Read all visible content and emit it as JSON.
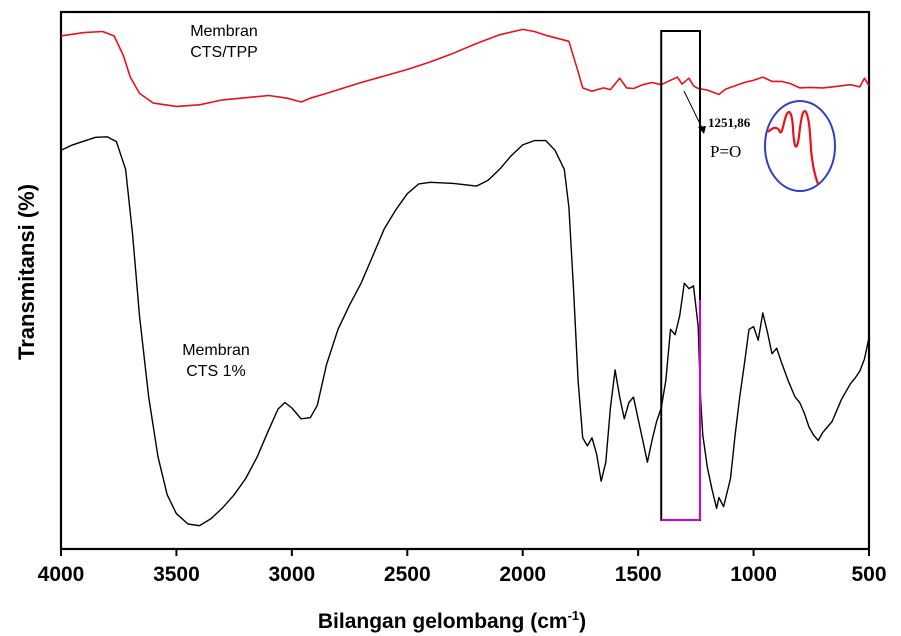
{
  "chart_data": {
    "type": "line",
    "xlabel": "Bilangan gelombang (cm",
    "xlabel_sup": "-1",
    "xlabel_close": ")",
    "ylabel": "Transmitansi (%)",
    "xlim": [
      4000,
      500
    ],
    "x_reversed": true,
    "x_ticks": [
      "4000",
      "3500",
      "3000",
      "2500",
      "2000",
      "1500",
      "1000",
      "500"
    ],
    "y_ticks_shown": false,
    "series": [
      {
        "name": "Membran CTS/TPP",
        "label_lines": [
          "Membran",
          "CTS/TPP"
        ],
        "color": "#e8121a",
        "points": [
          [
            4000,
            91.6
          ],
          [
            3900,
            92.2
          ],
          [
            3820,
            92.4
          ],
          [
            3770,
            91.6
          ],
          [
            3730,
            88.0
          ],
          [
            3700,
            84.0
          ],
          [
            3660,
            81.0
          ],
          [
            3600,
            79.2
          ],
          [
            3500,
            78.6
          ],
          [
            3400,
            78.9
          ],
          [
            3300,
            79.8
          ],
          [
            3200,
            80.2
          ],
          [
            3100,
            80.6
          ],
          [
            3020,
            80.1
          ],
          [
            2960,
            79.4
          ],
          [
            2920,
            80.1
          ],
          [
            2850,
            81.0
          ],
          [
            2700,
            83.0
          ],
          [
            2500,
            85.4
          ],
          [
            2400,
            86.8
          ],
          [
            2300,
            88.4
          ],
          [
            2200,
            90.2
          ],
          [
            2100,
            91.8
          ],
          [
            2000,
            92.8
          ],
          [
            1950,
            92.4
          ],
          [
            1900,
            91.7
          ],
          [
            1800,
            90.6
          ],
          [
            1760,
            85.0
          ],
          [
            1740,
            82.0
          ],
          [
            1700,
            81.4
          ],
          [
            1650,
            82.0
          ],
          [
            1620,
            81.7
          ],
          [
            1580,
            83.8
          ],
          [
            1550,
            82.0
          ],
          [
            1520,
            81.9
          ],
          [
            1480,
            82.6
          ],
          [
            1440,
            83.0
          ],
          [
            1400,
            82.6
          ],
          [
            1360,
            83.4
          ],
          [
            1330,
            84.0
          ],
          [
            1310,
            82.7
          ],
          [
            1280,
            83.8
          ],
          [
            1260,
            82.4
          ],
          [
            1240,
            81.9
          ],
          [
            1200,
            81.6
          ],
          [
            1150,
            80.8
          ],
          [
            1120,
            81.8
          ],
          [
            1080,
            82.4
          ],
          [
            1040,
            83.0
          ],
          [
            1000,
            83.4
          ],
          [
            960,
            84.0
          ],
          [
            920,
            83.2
          ],
          [
            880,
            83.2
          ],
          [
            840,
            82.8
          ],
          [
            800,
            82.0
          ],
          [
            760,
            82.1
          ],
          [
            700,
            82.0
          ],
          [
            660,
            82.2
          ],
          [
            620,
            82.4
          ],
          [
            580,
            82.6
          ],
          [
            540,
            82.2
          ],
          [
            520,
            83.8
          ],
          [
            500,
            82.4
          ]
        ]
      },
      {
        "name": "Membran CTS 1%",
        "label_lines": [
          "Membran",
          "CTS 1%"
        ],
        "color": "#000000",
        "points": [
          [
            4000,
            70.5
          ],
          [
            3950,
            71.5
          ],
          [
            3900,
            72.2
          ],
          [
            3850,
            72.9
          ],
          [
            3800,
            73.0
          ],
          [
            3760,
            72.1
          ],
          [
            3720,
            67.0
          ],
          [
            3690,
            55.0
          ],
          [
            3660,
            40.0
          ],
          [
            3620,
            25.0
          ],
          [
            3580,
            14.0
          ],
          [
            3540,
            7.0
          ],
          [
            3500,
            3.5
          ],
          [
            3450,
            1.6
          ],
          [
            3400,
            1.3
          ],
          [
            3350,
            2.6
          ],
          [
            3300,
            4.6
          ],
          [
            3250,
            7.0
          ],
          [
            3200,
            10.0
          ],
          [
            3150,
            14.0
          ],
          [
            3100,
            19.0
          ],
          [
            3060,
            22.8
          ],
          [
            3030,
            24.0
          ],
          [
            3000,
            23.0
          ],
          [
            2960,
            21.0
          ],
          [
            2920,
            21.2
          ],
          [
            2890,
            23.5
          ],
          [
            2850,
            31.0
          ],
          [
            2800,
            37.5
          ],
          [
            2750,
            42.0
          ],
          [
            2700,
            46.0
          ],
          [
            2650,
            51.0
          ],
          [
            2600,
            56.0
          ],
          [
            2550,
            59.5
          ],
          [
            2500,
            62.5
          ],
          [
            2450,
            64.3
          ],
          [
            2400,
            64.6
          ],
          [
            2300,
            64.4
          ],
          [
            2200,
            63.9
          ],
          [
            2150,
            65.0
          ],
          [
            2100,
            67.0
          ],
          [
            2050,
            69.5
          ],
          [
            2000,
            71.5
          ],
          [
            1950,
            72.3
          ],
          [
            1900,
            72.3
          ],
          [
            1860,
            70.5
          ],
          [
            1820,
            67.0
          ],
          [
            1800,
            60.0
          ],
          [
            1780,
            45.0
          ],
          [
            1760,
            28.0
          ],
          [
            1740,
            17.5
          ],
          [
            1720,
            16.0
          ],
          [
            1700,
            17.5
          ],
          [
            1680,
            14.5
          ],
          [
            1660,
            9.5
          ],
          [
            1640,
            13.0
          ],
          [
            1620,
            23.0
          ],
          [
            1600,
            30.0
          ],
          [
            1580,
            25.0
          ],
          [
            1560,
            21.0
          ],
          [
            1540,
            24.0
          ],
          [
            1520,
            25.0
          ],
          [
            1500,
            21.0
          ],
          [
            1480,
            17.0
          ],
          [
            1460,
            13.0
          ],
          [
            1440,
            17.0
          ],
          [
            1420,
            20.5
          ],
          [
            1400,
            23.0
          ],
          [
            1380,
            28.0
          ],
          [
            1360,
            37.5
          ],
          [
            1340,
            36.5
          ],
          [
            1320,
            40.0
          ],
          [
            1300,
            46.0
          ],
          [
            1280,
            45.0
          ],
          [
            1260,
            45.5
          ],
          [
            1240,
            38.0
          ],
          [
            1230,
            25.0
          ],
          [
            1220,
            18.0
          ],
          [
            1200,
            12.0
          ],
          [
            1180,
            8.0
          ],
          [
            1160,
            4.5
          ],
          [
            1150,
            6.5
          ],
          [
            1130,
            4.8
          ],
          [
            1100,
            10.0
          ],
          [
            1080,
            18.0
          ],
          [
            1060,
            25.0
          ],
          [
            1040,
            31.0
          ],
          [
            1020,
            37.5
          ],
          [
            1000,
            38.0
          ],
          [
            980,
            35.5
          ],
          [
            960,
            40.5
          ],
          [
            940,
            37.0
          ],
          [
            920,
            33.0
          ],
          [
            900,
            34.0
          ],
          [
            880,
            31.5
          ],
          [
            850,
            28.0
          ],
          [
            820,
            25.0
          ],
          [
            800,
            24.0
          ],
          [
            780,
            22.0
          ],
          [
            760,
            19.5
          ],
          [
            740,
            18.0
          ],
          [
            720,
            17.0
          ],
          [
            700,
            18.5
          ],
          [
            680,
            19.5
          ],
          [
            660,
            20.5
          ],
          [
            640,
            22.5
          ],
          [
            620,
            24.5
          ],
          [
            600,
            26.0
          ],
          [
            580,
            27.5
          ],
          [
            560,
            28.5
          ],
          [
            540,
            29.8
          ],
          [
            520,
            32.0
          ],
          [
            500,
            36.0
          ]
        ]
      }
    ],
    "highlight_box": {
      "x_range": [
        1400,
        1232
      ],
      "edge_color": "#d400d4"
    },
    "annotation": {
      "value": "1251,86",
      "label": "P=O",
      "arrow_from_x": 1320,
      "arrow_to_x": 1232,
      "inset": "zoomed peak doublet in a blue ellipse"
    },
    "ylim": [
      -3,
      96
    ],
    "grid": false,
    "legend": "none"
  }
}
